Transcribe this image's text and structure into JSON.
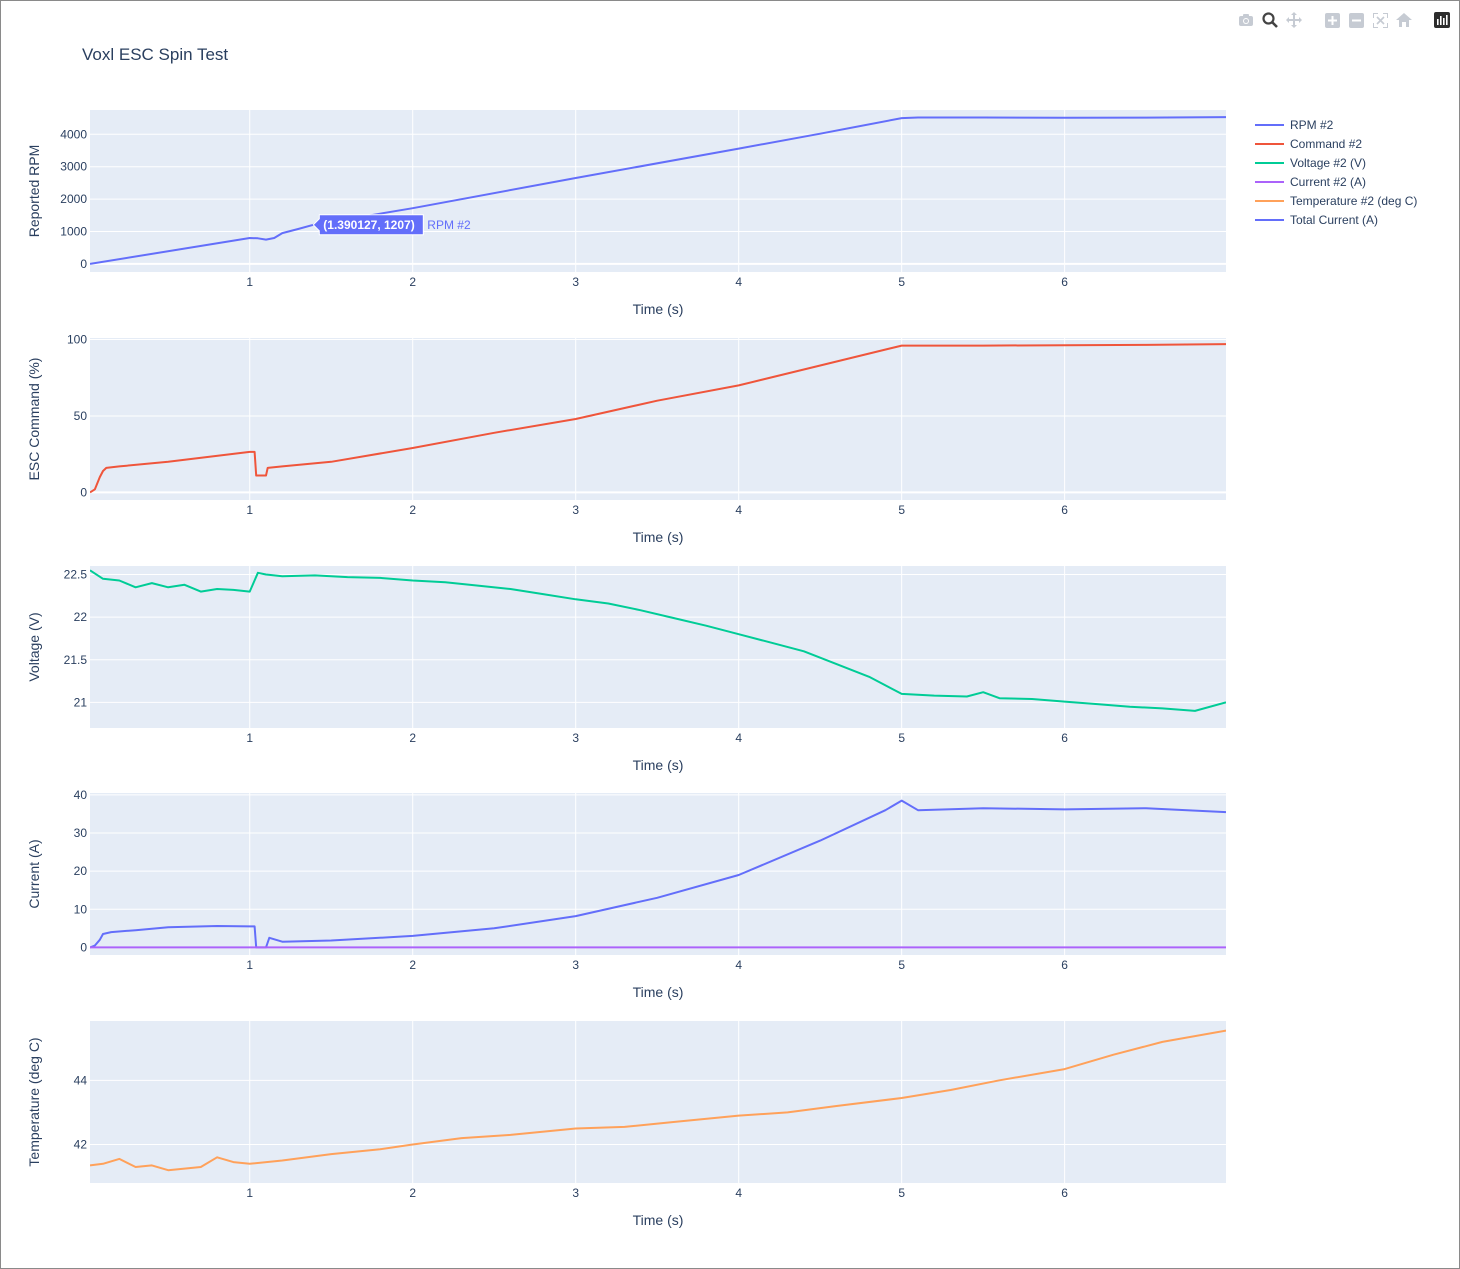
{
  "title": "Voxl ESC Spin Test",
  "modebar": {
    "icons": [
      "camera-icon",
      "zoom-icon",
      "pan-icon",
      "zoom-in-icon",
      "zoom-out-icon",
      "autoscale-icon",
      "reset-axes-icon",
      "plotly-logo-icon"
    ]
  },
  "legend": {
    "placement": "right",
    "entries": [
      {
        "name": "RPM #2",
        "color": "#636efa"
      },
      {
        "name": "Command #2",
        "color": "#EF553B"
      },
      {
        "name": "Voltage #2 (V)",
        "color": "#00cc96"
      },
      {
        "name": "Current #2 (A)",
        "color": "#ab63fa"
      },
      {
        "name": "Temperature #2 (deg C)",
        "color": "#FFA15A"
      },
      {
        "name": "Total Current (A)",
        "color": "#636efa"
      }
    ]
  },
  "hover": {
    "text": "(1.390127, 1207)",
    "series": "RPM #2",
    "x": 1.390127,
    "y": 1207,
    "color": "#636efa"
  },
  "chart_data": [
    {
      "type": "line",
      "xlabel": "Time (s)",
      "ylabel": "Reported RPM",
      "xlim": [
        0.02,
        6.99
      ],
      "ylim": [
        -250,
        4750
      ],
      "xticks": [
        1,
        2,
        3,
        4,
        5,
        6
      ],
      "yticks": [
        0,
        1000,
        2000,
        3000,
        4000
      ],
      "ytick_labels": [
        "0",
        "1000",
        "2000",
        "3000",
        "4000"
      ],
      "grid": true,
      "series": [
        {
          "name": "RPM #2",
          "color": "#636efa",
          "x": [
            0.02,
            1.0,
            1.05,
            1.1,
            1.15,
            1.2,
            1.3,
            1.39,
            2.0,
            3.0,
            4.0,
            4.5,
            5.0,
            5.1,
            5.5,
            6.0,
            6.5,
            6.99
          ],
          "y": [
            0,
            800,
            790,
            750,
            800,
            950,
            1080,
            1207,
            1720,
            2650,
            3560,
            4020,
            4500,
            4520,
            4520,
            4510,
            4515,
            4530
          ]
        }
      ]
    },
    {
      "type": "line",
      "xlabel": "Time (s)",
      "ylabel": "ESC Command (%)",
      "xlim": [
        0.02,
        6.99
      ],
      "ylim": [
        -5,
        101
      ],
      "xticks": [
        1,
        2,
        3,
        4,
        5,
        6
      ],
      "yticks": [
        0,
        50,
        100
      ],
      "ytick_labels": [
        "0",
        "50",
        "100"
      ],
      "grid": true,
      "series": [
        {
          "name": "Command #2",
          "color": "#EF553B",
          "x": [
            0.02,
            0.05,
            0.08,
            0.1,
            0.12,
            0.2,
            0.5,
            1.0,
            1.03,
            1.04,
            1.1,
            1.11,
            1.2,
            1.5,
            2.0,
            2.5,
            3.0,
            3.5,
            4.0,
            4.5,
            5.0,
            5.5,
            6.0,
            6.5,
            6.99
          ],
          "y": [
            0,
            2,
            10,
            14,
            16,
            17,
            20,
            26.5,
            26.5,
            11,
            11,
            16,
            17,
            20,
            29,
            39,
            48,
            60,
            70,
            83,
            96,
            96,
            96.3,
            96.5,
            97
          ]
        }
      ]
    },
    {
      "type": "line",
      "xlabel": "Time (s)",
      "ylabel": "Voltage (V)",
      "xlim": [
        0.02,
        6.99
      ],
      "ylim": [
        20.7,
        22.6
      ],
      "xticks": [
        1,
        2,
        3,
        4,
        5,
        6
      ],
      "yticks": [
        21,
        21.5,
        22,
        22.5
      ],
      "ytick_labels": [
        "21",
        "21.5",
        "22",
        "22.5"
      ],
      "grid": true,
      "series": [
        {
          "name": "Voltage #2 (V)",
          "color": "#00cc96",
          "x": [
            0.02,
            0.1,
            0.2,
            0.3,
            0.4,
            0.5,
            0.6,
            0.7,
            0.8,
            0.9,
            1.0,
            1.05,
            1.1,
            1.2,
            1.4,
            1.6,
            1.8,
            2.0,
            2.2,
            2.4,
            2.6,
            2.8,
            3.0,
            3.2,
            3.4,
            3.6,
            3.8,
            4.0,
            4.2,
            4.4,
            4.6,
            4.8,
            5.0,
            5.2,
            5.4,
            5.5,
            5.6,
            5.8,
            6.0,
            6.2,
            6.4,
            6.6,
            6.8,
            6.99
          ],
          "y": [
            22.55,
            22.45,
            22.43,
            22.35,
            22.4,
            22.35,
            22.38,
            22.3,
            22.33,
            22.32,
            22.3,
            22.52,
            22.5,
            22.48,
            22.49,
            22.47,
            22.46,
            22.43,
            22.41,
            22.37,
            22.33,
            22.27,
            22.21,
            22.16,
            22.08,
            21.99,
            21.9,
            21.8,
            21.7,
            21.6,
            21.45,
            21.3,
            21.1,
            21.08,
            21.07,
            21.12,
            21.05,
            21.04,
            21.01,
            20.98,
            20.95,
            20.93,
            20.9,
            21.0
          ]
        }
      ]
    },
    {
      "type": "line",
      "xlabel": "Time (s)",
      "ylabel": "Current (A)",
      "xlim": [
        0.02,
        6.99
      ],
      "ylim": [
        -2,
        40.5
      ],
      "xticks": [
        1,
        2,
        3,
        4,
        5,
        6
      ],
      "yticks": [
        0,
        10,
        20,
        30,
        40
      ],
      "ytick_labels": [
        "0",
        "10",
        "20",
        "30",
        "40"
      ],
      "grid": true,
      "series": [
        {
          "name": "Total Current (A)",
          "color": "#636efa",
          "x": [
            0.02,
            0.05,
            0.08,
            0.1,
            0.15,
            0.3,
            0.5,
            0.8,
            1.0,
            1.03,
            1.04,
            1.1,
            1.12,
            1.2,
            1.5,
            2.0,
            2.5,
            3.0,
            3.5,
            4.0,
            4.5,
            4.9,
            5.0,
            5.1,
            5.5,
            6.0,
            6.5,
            6.99
          ],
          "y": [
            0,
            0.5,
            2,
            3.5,
            4,
            4.5,
            5.3,
            5.6,
            5.5,
            5.5,
            0,
            0,
            2.5,
            1.5,
            1.8,
            3,
            5,
            8.2,
            13,
            19,
            28,
            36,
            38.5,
            36,
            36.5,
            36.2,
            36.5,
            35.5
          ]
        },
        {
          "name": "Current #2 (A)",
          "color": "#ab63fa",
          "x": [
            0.02,
            6.99
          ],
          "y": [
            0,
            0
          ]
        }
      ]
    },
    {
      "type": "line",
      "xlabel": "Time (s)",
      "ylabel": "Temperature (deg C)",
      "xlim": [
        0.02,
        6.99
      ],
      "ylim": [
        40.8,
        45.85
      ],
      "xticks": [
        1,
        2,
        3,
        4,
        5,
        6
      ],
      "yticks": [
        42,
        44
      ],
      "ytick_labels": [
        "42",
        "44"
      ],
      "grid": true,
      "series": [
        {
          "name": "Temperature #2 (deg C)",
          "color": "#FFA15A",
          "x": [
            0.02,
            0.1,
            0.2,
            0.3,
            0.4,
            0.5,
            0.6,
            0.7,
            0.8,
            0.9,
            1.0,
            1.2,
            1.5,
            1.8,
            2.0,
            2.3,
            2.6,
            3.0,
            3.3,
            3.6,
            4.0,
            4.3,
            4.6,
            5.0,
            5.3,
            5.6,
            6.0,
            6.3,
            6.6,
            6.99
          ],
          "y": [
            41.35,
            41.4,
            41.55,
            41.3,
            41.35,
            41.2,
            41.25,
            41.3,
            41.6,
            41.45,
            41.4,
            41.5,
            41.7,
            41.85,
            42.0,
            42.2,
            42.3,
            42.5,
            42.55,
            42.7,
            42.9,
            43.0,
            43.2,
            43.45,
            43.7,
            44.0,
            44.35,
            44.8,
            45.2,
            45.55
          ]
        }
      ]
    }
  ]
}
